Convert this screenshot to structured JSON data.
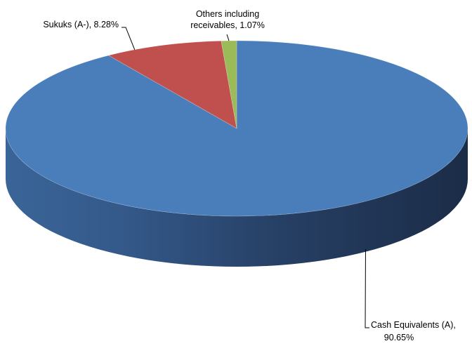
{
  "chart_data": {
    "type": "pie",
    "title": "",
    "slices": [
      {
        "label": "Cash Equivalents (A)",
        "value": 90.65,
        "color": "#4a7ebb",
        "label_lines": [
          "Cash Equivalents (A),",
          "90.65%"
        ]
      },
      {
        "label": "Sukuks (A-)",
        "value": 8.28,
        "color": "#c0504d",
        "label_lines": [
          "Sukuks (A-), 8.28%"
        ]
      },
      {
        "label": "Others including receivables",
        "value": 1.07,
        "color": "#9bbb59",
        "label_lines": [
          "Others including",
          "receivables, 1.07%"
        ]
      }
    ],
    "units": "%",
    "style": "3d-pie",
    "legend": "none",
    "start_angle": "12 o'clock",
    "direction": "clockwise"
  }
}
